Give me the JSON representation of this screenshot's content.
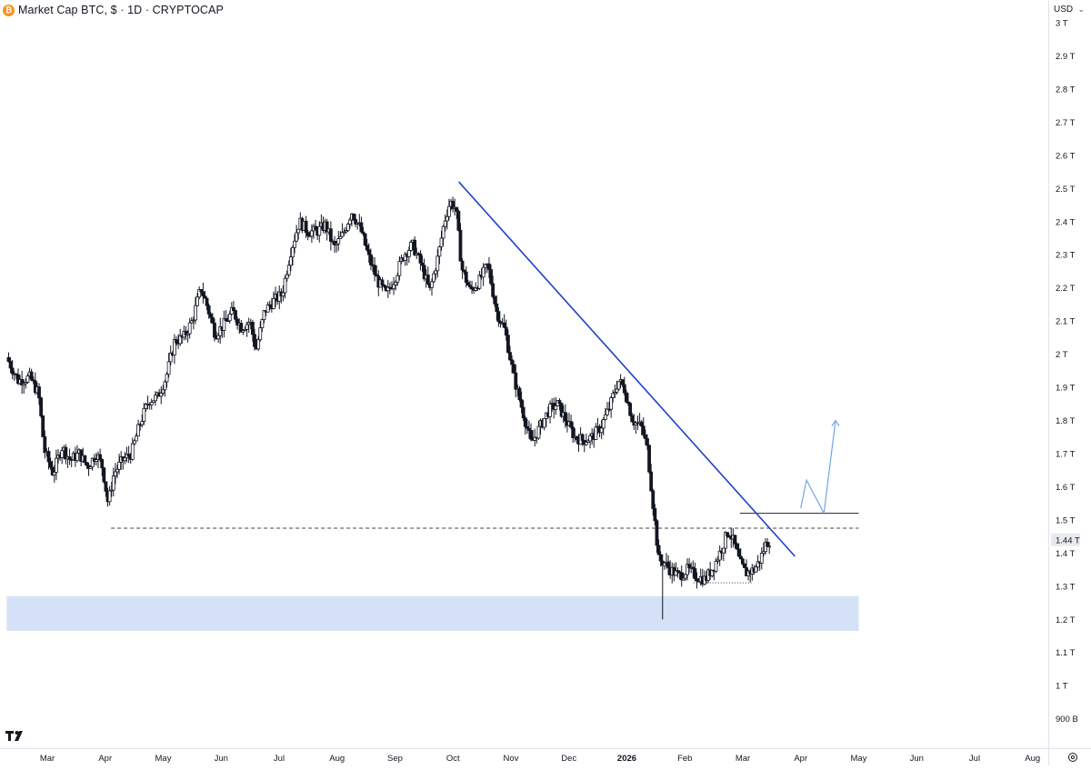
{
  "header": {
    "coin_icon": "bitcoin-icon",
    "coin_symbol": "₿",
    "title": "Market Cap BTC, $ · 1D · CRYPTOCAP"
  },
  "scale": {
    "currency": "USD",
    "chevron_icon": "chevron-down-icon",
    "settings_icon": "gear-icon",
    "price_tag": "1.44 T"
  },
  "logo": {
    "icon": "tradingview-logo"
  },
  "colors": {
    "candle": "#131722",
    "trendline": "#1e40c8",
    "arrow": "#6ea8e6",
    "support_zone": "#d4e1f7",
    "grid_axis": "#e0e3eb",
    "price_tag_bg": "#e8eaee"
  },
  "chart_data": {
    "type": "candlestick",
    "title": "Market Cap BTC, $ · 1D · CRYPTOCAP",
    "ylabel": "",
    "xlabel": "",
    "y_ticks": [
      "3 T",
      "2.9 T",
      "2.8 T",
      "2.7 T",
      "2.6 T",
      "2.5 T",
      "2.4 T",
      "2.3 T",
      "2.2 T",
      "2.1 T",
      "2 T",
      "1.9 T",
      "1.8 T",
      "1.7 T",
      "1.6 T",
      "1.5 T",
      "1.4 T",
      "1.3 T",
      "1.2 T",
      "1.1 T",
      "1 T",
      "900 B"
    ],
    "y_tick_values": [
      3.0,
      2.9,
      2.8,
      2.7,
      2.6,
      2.5,
      2.4,
      2.3,
      2.2,
      2.1,
      2.0,
      1.9,
      1.8,
      1.7,
      1.6,
      1.5,
      1.4,
      1.3,
      1.2,
      1.1,
      1.0,
      0.9
    ],
    "ylim": [
      0.88,
      3.02
    ],
    "y_unit": "T",
    "x_ticks": [
      "Mar",
      "Apr",
      "May",
      "Jun",
      "Jul",
      "Aug",
      "Sep",
      "Oct",
      "Nov",
      "Dec",
      "2026",
      "Feb",
      "Mar",
      "Apr",
      "May",
      "Jun",
      "Jul",
      "Aug"
    ],
    "x_tick_bold": [
      false,
      false,
      false,
      false,
      false,
      false,
      false,
      false,
      false,
      false,
      true,
      false,
      false,
      false,
      false,
      false,
      false,
      false
    ],
    "x_tick_months": [
      1,
      2,
      3,
      4,
      5,
      6,
      7,
      8,
      9,
      10,
      11,
      12,
      13,
      14,
      15,
      16,
      17,
      18
    ],
    "xlim": [
      0.3,
      18.3
    ],
    "price_path": [
      [
        0.3,
        1.99
      ],
      [
        0.5,
        1.92
      ],
      [
        0.7,
        1.93
      ],
      [
        0.85,
        1.88
      ],
      [
        0.95,
        1.71
      ],
      [
        1.1,
        1.64
      ],
      [
        1.25,
        1.72
      ],
      [
        1.4,
        1.68
      ],
      [
        1.55,
        1.7
      ],
      [
        1.7,
        1.66
      ],
      [
        1.85,
        1.7
      ],
      [
        1.95,
        1.66
      ],
      [
        2.05,
        1.55
      ],
      [
        2.15,
        1.64
      ],
      [
        2.3,
        1.68
      ],
      [
        2.45,
        1.7
      ],
      [
        2.6,
        1.79
      ],
      [
        2.75,
        1.86
      ],
      [
        2.9,
        1.87
      ],
      [
        3.05,
        1.93
      ],
      [
        3.2,
        2.04
      ],
      [
        3.35,
        2.05
      ],
      [
        3.5,
        2.1
      ],
      [
        3.65,
        2.2
      ],
      [
        3.75,
        2.15
      ],
      [
        3.9,
        2.06
      ],
      [
        4.05,
        2.09
      ],
      [
        4.2,
        2.13
      ],
      [
        4.35,
        2.08
      ],
      [
        4.5,
        2.1
      ],
      [
        4.6,
        2.01
      ],
      [
        4.75,
        2.13
      ],
      [
        4.9,
        2.16
      ],
      [
        5.05,
        2.18
      ],
      [
        5.2,
        2.31
      ],
      [
        5.35,
        2.4
      ],
      [
        5.5,
        2.37
      ],
      [
        5.65,
        2.37
      ],
      [
        5.8,
        2.39
      ],
      [
        5.95,
        2.32
      ],
      [
        6.1,
        2.36
      ],
      [
        6.25,
        2.43
      ],
      [
        6.4,
        2.38
      ],
      [
        6.55,
        2.29
      ],
      [
        6.7,
        2.22
      ],
      [
        6.85,
        2.18
      ],
      [
        7.0,
        2.23
      ],
      [
        7.15,
        2.3
      ],
      [
        7.3,
        2.33
      ],
      [
        7.45,
        2.27
      ],
      [
        7.6,
        2.19
      ],
      [
        7.75,
        2.3
      ],
      [
        7.85,
        2.4
      ],
      [
        7.95,
        2.46
      ],
      [
        8.05,
        2.44
      ],
      [
        8.15,
        2.26
      ],
      [
        8.3,
        2.19
      ],
      [
        8.45,
        2.22
      ],
      [
        8.6,
        2.27
      ],
      [
        8.75,
        2.13
      ],
      [
        8.9,
        2.07
      ],
      [
        9.05,
        1.93
      ],
      [
        9.2,
        1.83
      ],
      [
        9.35,
        1.73
      ],
      [
        9.5,
        1.78
      ],
      [
        9.65,
        1.83
      ],
      [
        9.8,
        1.85
      ],
      [
        9.95,
        1.8
      ],
      [
        10.1,
        1.75
      ],
      [
        10.25,
        1.74
      ],
      [
        10.4,
        1.75
      ],
      [
        10.55,
        1.78
      ],
      [
        10.7,
        1.84
      ],
      [
        10.85,
        1.92
      ],
      [
        10.95,
        1.9
      ],
      [
        11.1,
        1.8
      ],
      [
        11.25,
        1.78
      ],
      [
        11.35,
        1.72
      ],
      [
        11.45,
        1.55
      ],
      [
        11.55,
        1.38
      ],
      [
        11.65,
        1.37
      ],
      [
        11.75,
        1.35
      ],
      [
        11.9,
        1.33
      ],
      [
        12.05,
        1.35
      ],
      [
        12.2,
        1.33
      ],
      [
        12.35,
        1.32
      ],
      [
        12.5,
        1.36
      ],
      [
        12.65,
        1.42
      ],
      [
        12.75,
        1.47
      ],
      [
        12.85,
        1.43
      ],
      [
        12.95,
        1.37
      ],
      [
        13.05,
        1.34
      ],
      [
        13.2,
        1.35
      ],
      [
        13.3,
        1.38
      ],
      [
        13.4,
        1.43
      ],
      [
        13.48,
        1.44
      ]
    ],
    "min_low": 1.2,
    "annotations": {
      "trendline": {
        "from": [
          8.1,
          2.52
        ],
        "to": [
          13.9,
          1.39
        ]
      },
      "support_level_dashed": {
        "price": 1.475,
        "x_from": 2.1,
        "x_to": 15.0
      },
      "resistance_level_solid": {
        "price": 1.52,
        "x_from": 12.95,
        "x_to": 15.0
      },
      "range_low_dotted": {
        "price": 1.31,
        "x_from": 12.15,
        "x_to": 13.15
      },
      "support_zone": {
        "price_from": 1.165,
        "price_to": 1.27,
        "x_from": 0.3,
        "x_to": 15.0
      },
      "projection_arrow": [
        [
          14.0,
          1.535
        ],
        [
          14.1,
          1.62
        ],
        [
          14.4,
          1.52
        ],
        [
          14.6,
          1.8
        ]
      ]
    }
  }
}
